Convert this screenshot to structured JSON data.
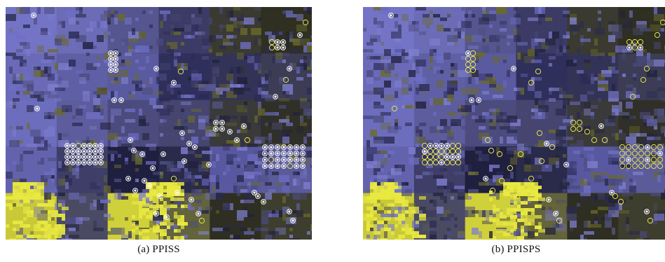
{
  "figure": {
    "panels": [
      {
        "caption": "(a) PPISS",
        "marker_mix": "mostly-filled-white-dot"
      },
      {
        "caption": "(b) PPISPS",
        "marker_mix": "mostly-open-yellow-circle"
      }
    ],
    "colors": {
      "blue_region": "#6f6fc8",
      "dark_region": "#2a2a55",
      "olive_region": "#6a6a2a",
      "yellow_region": "#e8e840",
      "marker_yellow": "#e6e64a",
      "marker_white": "#ffffff"
    },
    "legend": null
  }
}
